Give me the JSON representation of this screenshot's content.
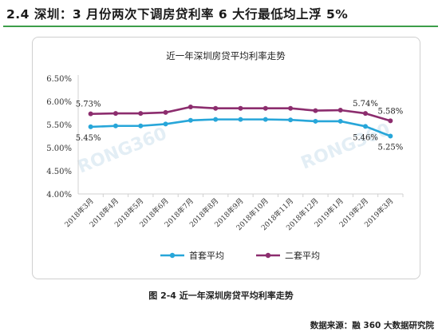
{
  "heading": "2.4  深圳：3 月份两次下调房贷利率  6 大行最低均上浮 5%",
  "caption": "图 2-4  近一年深圳房贷平均利率走势",
  "source": "数据来源：融 360 大数据研究院",
  "watermark": "RONG360",
  "chart_data": {
    "type": "line",
    "title": "近一年深圳房贷平均利率走势",
    "xlabel": "",
    "ylabel": "",
    "ylim": [
      0.04,
      0.065
    ],
    "y_ticks": [
      "4.00%",
      "4.50%",
      "5.00%",
      "5.50%",
      "6.00%",
      "6.50%"
    ],
    "y_tick_values": [
      0.04,
      0.045,
      0.05,
      0.055,
      0.06,
      0.065
    ],
    "categories": [
      "2018年3月",
      "2018年4月",
      "2018年5月",
      "2018年6月",
      "2018年7月",
      "2018年8月",
      "2018年9月",
      "2018年10月",
      "2018年11月",
      "2018年12月",
      "2019年1月",
      "2019年2月",
      "2019年3月"
    ],
    "legend_position": "bottom",
    "grid": false,
    "series": [
      {
        "name": "首套平均",
        "color": "#27a6d9",
        "values": [
          0.0545,
          0.0547,
          0.0547,
          0.0551,
          0.0559,
          0.0561,
          0.0561,
          0.0561,
          0.056,
          0.0557,
          0.0557,
          0.0546,
          0.0525
        ],
        "labels": [
          {
            "index": 0,
            "text": "5.45%",
            "pos": "below"
          },
          {
            "index": 11,
            "text": "5.46%",
            "pos": "below"
          },
          {
            "index": 12,
            "text": "5.25%",
            "pos": "below"
          }
        ]
      },
      {
        "name": "二套平均",
        "color": "#8c2d6e",
        "values": [
          0.0573,
          0.0574,
          0.0574,
          0.0576,
          0.0588,
          0.0585,
          0.0585,
          0.0585,
          0.0585,
          0.058,
          0.0581,
          0.0574,
          0.0558
        ],
        "labels": [
          {
            "index": 0,
            "text": "5.73%",
            "pos": "above"
          },
          {
            "index": 11,
            "text": "5.74%",
            "pos": "above"
          },
          {
            "index": 12,
            "text": "5.58%",
            "pos": "above"
          }
        ]
      }
    ]
  }
}
